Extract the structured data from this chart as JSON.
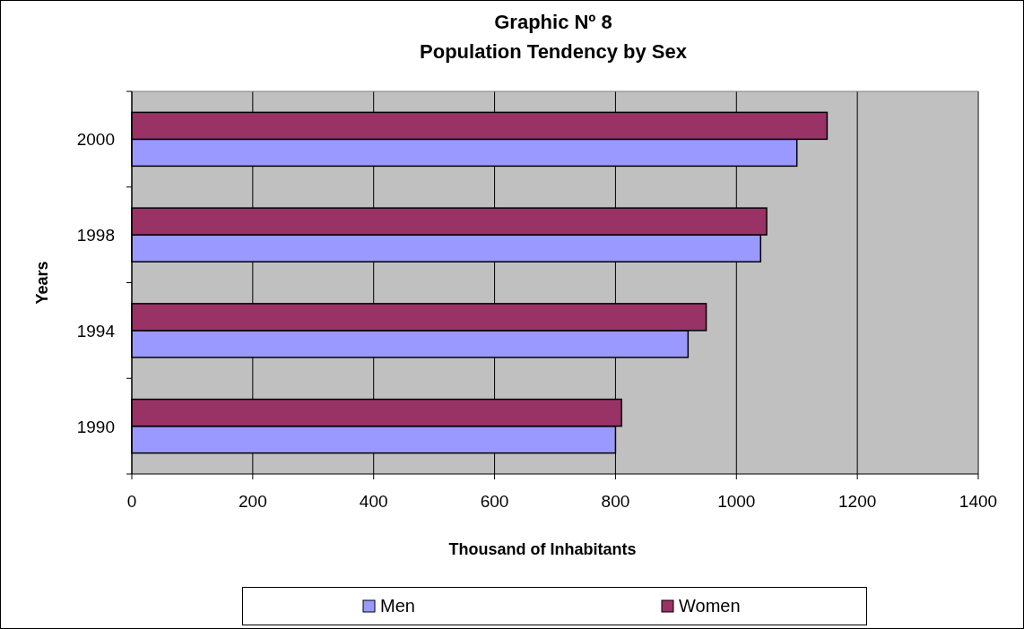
{
  "chart_data": {
    "type": "bar",
    "orientation": "horizontal",
    "title": "Graphic Nº 8\nPopulation Tendency by Sex",
    "xlabel": "Thousand of Inhabitants",
    "ylabel": "Years",
    "categories": [
      "2000",
      "1998",
      "1994",
      "1990"
    ],
    "series": [
      {
        "name": "Men",
        "color": "#9999ff",
        "values": [
          1100,
          1040,
          920,
          800
        ]
      },
      {
        "name": "Women",
        "color": "#993366",
        "values": [
          1150,
          1050,
          950,
          810
        ]
      }
    ],
    "xlim": [
      0,
      1400
    ],
    "xticks": [
      0,
      200,
      400,
      600,
      800,
      1000,
      1200,
      1400
    ],
    "grid": "x",
    "legend": "bottom"
  }
}
